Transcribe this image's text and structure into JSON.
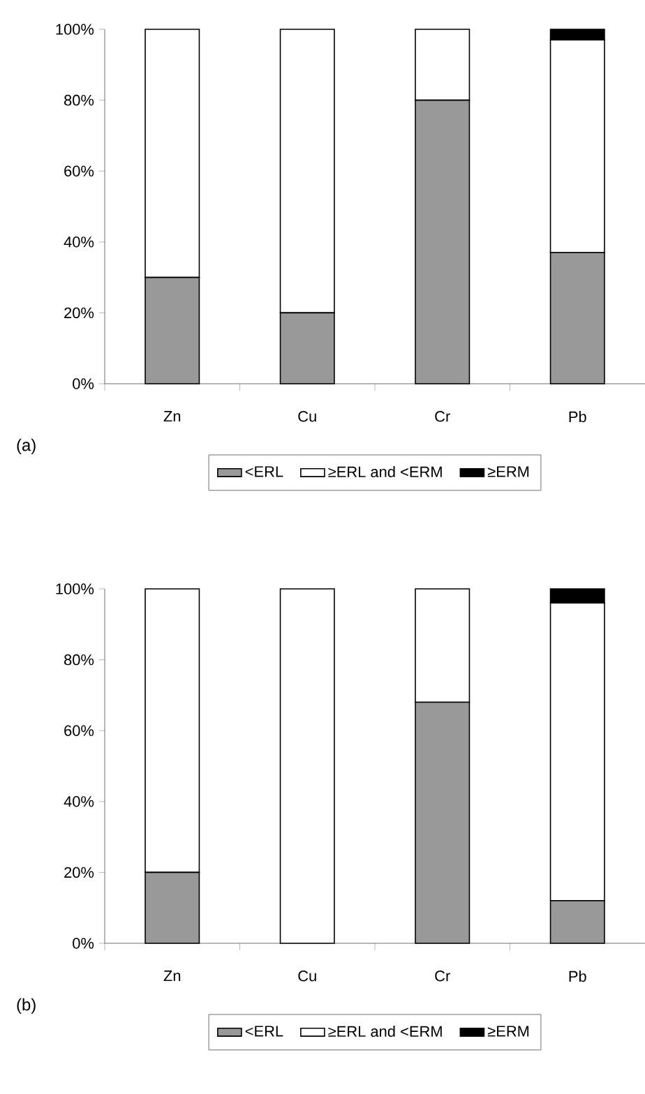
{
  "chart_data": [
    {
      "type": "bar",
      "stacked": true,
      "categories": [
        "Zn",
        "Cu",
        "Cr",
        "Pb"
      ],
      "ylim": [
        0,
        100
      ],
      "yticks": [
        {
          "value": 0,
          "label": "0%"
        },
        {
          "value": 20,
          "label": "20%"
        },
        {
          "value": 40,
          "label": "40%"
        },
        {
          "value": 60,
          "label": "60%"
        },
        {
          "value": 80,
          "label": "80%"
        },
        {
          "value": 100,
          "label": "100%"
        }
      ],
      "legend": "bottom",
      "annotations": [
        "(a)"
      ],
      "series": [
        {
          "name": "<ERL",
          "color": "#999999",
          "values": [
            30,
            20,
            80,
            37
          ]
        },
        {
          "name": "≥ERL and <ERM",
          "color": "#ffffff",
          "values": [
            70,
            80,
            20,
            60
          ]
        },
        {
          "name": "≥ERM",
          "color": "#000000",
          "values": [
            0,
            0,
            0,
            3
          ]
        }
      ]
    },
    {
      "type": "bar",
      "stacked": true,
      "categories": [
        "Zn",
        "Cu",
        "Cr",
        "Pb"
      ],
      "ylim": [
        0,
        100
      ],
      "yticks": [
        {
          "value": 0,
          "label": "0%"
        },
        {
          "value": 20,
          "label": "20%"
        },
        {
          "value": 40,
          "label": "40%"
        },
        {
          "value": 60,
          "label": "60%"
        },
        {
          "value": 80,
          "label": "80%"
        },
        {
          "value": 100,
          "label": "100%"
        }
      ],
      "legend": "bottom",
      "annotations": [
        "(b)"
      ],
      "series": [
        {
          "name": "<ERL",
          "color": "#999999",
          "values": [
            20,
            0,
            68,
            12
          ]
        },
        {
          "name": "≥ERL and <ERM",
          "color": "#ffffff",
          "values": [
            80,
            100,
            32,
            84
          ]
        },
        {
          "name": "≥ERM",
          "color": "#000000",
          "values": [
            0,
            0,
            0,
            4
          ]
        }
      ]
    }
  ]
}
